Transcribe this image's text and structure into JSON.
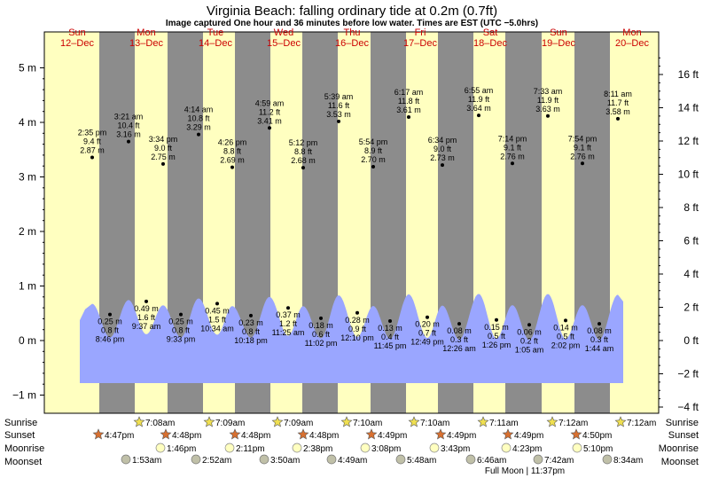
{
  "header": {
    "title": "Virginia Beach: falling  ordinary tide at 0.2m (0.7ft)",
    "subtitle": "Image captured One hour and 36 minutes before low water. Times are EST (UTC −5.0hrs)"
  },
  "colors": {
    "day": "#ffffc0",
    "night": "#8c8c8c",
    "tide": "#9aa6ff",
    "day_label": "#cc0000",
    "sunrise_star": "#f0e050",
    "sunset_star": "#d87030",
    "moonrise": "#ffffc0",
    "moonset": "#c0c0a8"
  },
  "days": [
    {
      "dow": "Sun",
      "date": "12–Dec"
    },
    {
      "dow": "Mon",
      "date": "13–Dec"
    },
    {
      "dow": "Tue",
      "date": "14–Dec"
    },
    {
      "dow": "Wed",
      "date": "15–Dec"
    },
    {
      "dow": "Thu",
      "date": "16–Dec"
    },
    {
      "dow": "Fri",
      "date": "17–Dec"
    },
    {
      "dow": "Sat",
      "date": "18–Dec"
    },
    {
      "dow": "Sun",
      "date": "19–Dec"
    },
    {
      "dow": "Mon",
      "date": "20–Dec"
    }
  ],
  "chart_data": {
    "type": "area",
    "title": "Virginia Beach: falling  ordinary tide at 0.2m (0.7ft)",
    "left_axis": {
      "unit": "m",
      "range": [
        -1.2,
        5.3
      ],
      "ticks": [
        "5 m",
        "4 m",
        "3 m",
        "2 m",
        "1 m",
        "0 m",
        "−1 m"
      ]
    },
    "right_axis": {
      "unit": "ft",
      "ticks": [
        "16 ft",
        "14 ft",
        "12 ft",
        "10 ft",
        "8 ft",
        "6 ft",
        "4 ft",
        "2 ft",
        "0 ft",
        "−2 ft",
        "−4 ft"
      ]
    },
    "high_tides": [
      {
        "time": "2:35 pm",
        "ft": "9.4 ft",
        "m": "2.87 m",
        "value": 2.87
      },
      {
        "time": "3:21 am",
        "ft": "10.4 ft",
        "m": "3.16 m",
        "value": 3.16
      },
      {
        "time": "3:34 pm",
        "ft": "9.0 ft",
        "m": "2.75 m",
        "value": 2.75
      },
      {
        "time": "4:14 am",
        "ft": "10.8 ft",
        "m": "3.29 m",
        "value": 3.29
      },
      {
        "time": "4:26 pm",
        "ft": "8.8 ft",
        "m": "2.69 m",
        "value": 2.69
      },
      {
        "time": "4:59 am",
        "ft": "11.2 ft",
        "m": "3.41 m",
        "value": 3.41
      },
      {
        "time": "5:12 pm",
        "ft": "8.8 ft",
        "m": "2.68 m",
        "value": 2.68
      },
      {
        "time": "5:39 am",
        "ft": "11.6 ft",
        "m": "3.53 m",
        "value": 3.53
      },
      {
        "time": "5:54 pm",
        "ft": "8.9 ft",
        "m": "2.70 m",
        "value": 2.7
      },
      {
        "time": "6:17 am",
        "ft": "11.8 ft",
        "m": "3.61 m",
        "value": 3.61
      },
      {
        "time": "6:34 pm",
        "ft": "9.0 ft",
        "m": "2.73 m",
        "value": 2.73
      },
      {
        "time": "6:55 am",
        "ft": "11.9 ft",
        "m": "3.64 m",
        "value": 3.64
      },
      {
        "time": "7:14 pm",
        "ft": "9.1 ft",
        "m": "2.76 m",
        "value": 2.76
      },
      {
        "time": "7:33 am",
        "ft": "11.9 ft",
        "m": "3.63 m",
        "value": 3.63
      },
      {
        "time": "7:54 pm",
        "ft": "9.1 ft",
        "m": "2.76 m",
        "value": 2.76
      },
      {
        "time": "8:11 am",
        "ft": "11.7 ft",
        "m": "3.58 m",
        "value": 3.58
      }
    ],
    "low_tides": [
      {
        "m": "0.25 m",
        "ft": "0.8 ft",
        "time": "8:46 pm",
        "value": 0.25
      },
      {
        "m": "0.49 m",
        "ft": "1.6 ft",
        "time": "9:37 am",
        "value": 0.49
      },
      {
        "m": "0.25 m",
        "ft": "0.8 ft",
        "time": "9:33 pm",
        "value": 0.25
      },
      {
        "m": "0.45 m",
        "ft": "1.5 ft",
        "time": "10:34 am",
        "value": 0.45
      },
      {
        "m": "0.23 m",
        "ft": "0.8 ft",
        "time": "10:18 pm",
        "value": 0.23
      },
      {
        "m": "0.37 m",
        "ft": "1.2 ft",
        "time": "11:25 am",
        "value": 0.37
      },
      {
        "m": "0.18 m",
        "ft": "0.6 ft",
        "time": "11:02 pm",
        "value": 0.18
      },
      {
        "m": "0.28 m",
        "ft": "0.9 ft",
        "time": "12:10 pm",
        "value": 0.28
      },
      {
        "m": "0.13 m",
        "ft": "0.4 ft",
        "time": "11:45 pm",
        "value": 0.13
      },
      {
        "m": "0.20 m",
        "ft": "0.7 ft",
        "time": "12:49 pm",
        "value": 0.2
      },
      {
        "m": "0.08 m",
        "ft": "0.3 ft",
        "time": "12:26 am",
        "value": 0.08
      },
      {
        "m": "0.15 m",
        "ft": "0.5 ft",
        "time": "1:26 pm",
        "value": 0.15
      },
      {
        "m": "0.06 m",
        "ft": "0.2 ft",
        "time": "1:05 am",
        "value": 0.06
      },
      {
        "m": "0.14 m",
        "ft": "0.5 ft",
        "time": "2:02 pm",
        "value": 0.14
      },
      {
        "m": "0.08 m",
        "ft": "0.3 ft",
        "time": "1:44 am",
        "value": 0.08
      }
    ]
  },
  "legend": {
    "sunrise_label": "Sunrise",
    "sunset_label": "Sunset",
    "moonrise_label": "Moonrise",
    "moonset_label": "Moonset",
    "sunrise": [
      "7:08am",
      "7:09am",
      "7:09am",
      "7:10am",
      "7:10am",
      "7:11am",
      "7:12am",
      "7:12am"
    ],
    "sunset": [
      "4:47pm",
      "4:48pm",
      "4:48pm",
      "4:48pm",
      "4:49pm",
      "4:49pm",
      "4:49pm",
      "4:50pm"
    ],
    "moonrise": [
      "1:46pm",
      "2:11pm",
      "2:38pm",
      "3:08pm",
      "3:43pm",
      "4:23pm",
      "5:10pm"
    ],
    "moonset": [
      "1:53am",
      "2:52am",
      "3:50am",
      "4:49am",
      "5:48am",
      "6:46am",
      "7:42am",
      "8:34am"
    ],
    "full_moon": "Full Moon | 11:37pm"
  }
}
